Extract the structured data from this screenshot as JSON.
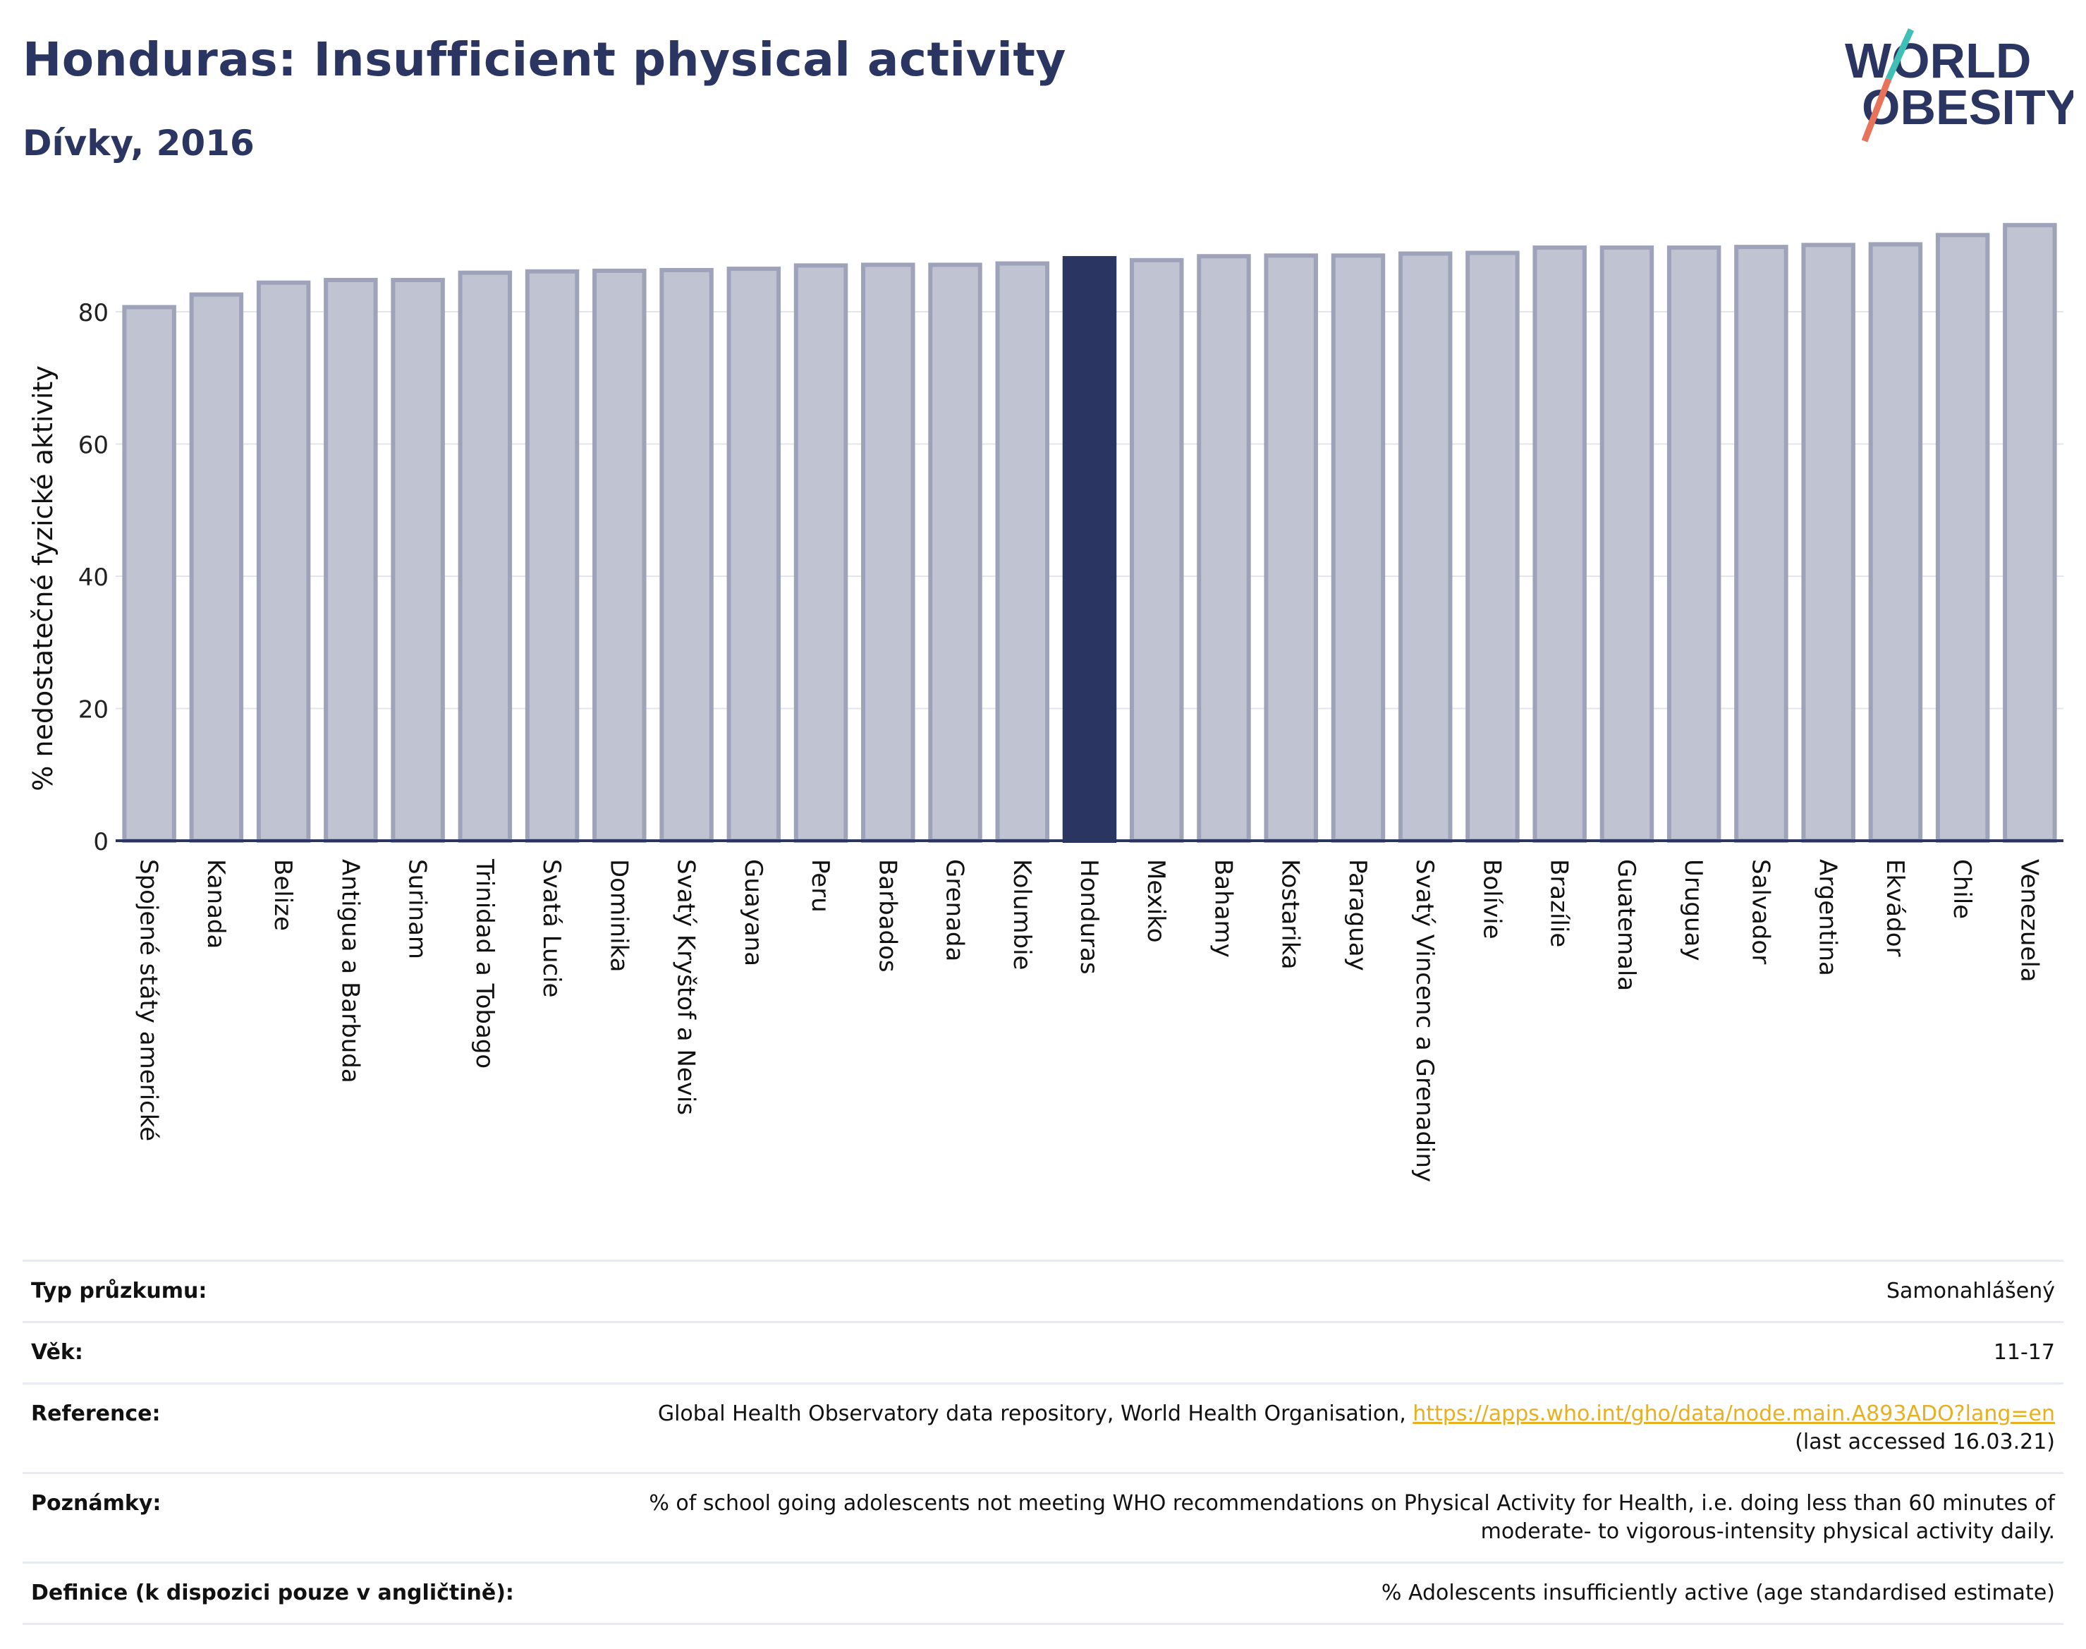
{
  "header": {
    "title": "Honduras: Insufficient physical activity",
    "subtitle": "Dívky, 2016"
  },
  "logo": {
    "line1": "WORLD",
    "line2": "OBESITY",
    "colors": {
      "text": "#2b3561",
      "slash_teal": "#3fbfb5",
      "slash_coral": "#e8735a"
    }
  },
  "colors": {
    "bar": "#c0c3d1",
    "bar_border": "#9ea3ba",
    "highlight": "#2b3561",
    "grid": "#e3e5ec",
    "axis": "#2b3561"
  },
  "chart_data": {
    "type": "bar",
    "title": "",
    "xlabel": "",
    "ylabel": "% nedostatečné fyzické aktivity",
    "ylim": [
      0,
      95
    ],
    "yticks": [
      0,
      20,
      40,
      60,
      80
    ],
    "grid": true,
    "highlight": "Honduras",
    "categories": [
      "Spojené státy americké",
      "Kanada",
      "Belize",
      "Antigua a Barbuda",
      "Surinam",
      "Trinidad a Tobago",
      "Svatá Lucie",
      "Dominika",
      "Svatý Kryštof a Nevis",
      "Guayana",
      "Peru",
      "Barbados",
      "Grenada",
      "Kolumbie",
      "Honduras",
      "Mexiko",
      "Bahamy",
      "Kostarika",
      "Paraguay",
      "Svatý Vincenc a Grenadiny",
      "Bolívie",
      "Brazílie",
      "Guatemala",
      "Uruguay",
      "Salvador",
      "Argentina",
      "Ekvádor",
      "Chile",
      "Venezuela"
    ],
    "values": [
      80.7,
      82.6,
      84.4,
      84.8,
      84.8,
      85.9,
      86.1,
      86.2,
      86.3,
      86.5,
      87.0,
      87.1,
      87.1,
      87.3,
      88.1,
      87.8,
      88.4,
      88.5,
      88.5,
      88.8,
      88.9,
      89.7,
      89.7,
      89.7,
      89.8,
      90.1,
      90.2,
      91.6,
      93.1
    ]
  },
  "meta": [
    {
      "label": "Typ průzkumu:",
      "value": "Samonahlášený"
    },
    {
      "label": "Věk:",
      "value": "11-17"
    },
    {
      "label": "Reference:",
      "value": "Global Health Observatory data repository, World Health Organisation, ",
      "link": "https://apps.who.int/gho/data/node.main.A893ADO?lang=en",
      "value2": "(last accessed 16.03.21)"
    },
    {
      "label": "Poznámky:",
      "value": "% of school going adolescents not meeting WHO recommendations on Physical Activity for Health, i.e. doing less than 60 minutes of",
      "value2": "moderate- to vigorous-intensity physical activity daily."
    },
    {
      "label": "Definice (k dispozici pouze v angličtině):",
      "value": "% Adolescents insufficiently active (age standardised estimate)"
    }
  ]
}
